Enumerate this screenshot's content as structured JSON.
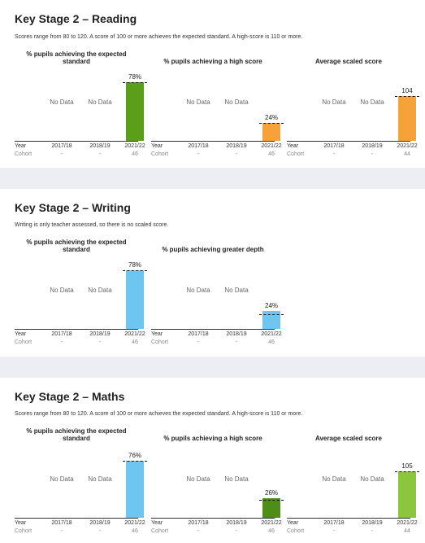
{
  "reading": {
    "title": "Key Stage 2 – Reading",
    "description": "Scores range from 80 to 120. A score of 100 or more achieves the expected standard. A high-score is 110 or more."
  },
  "writing": {
    "title": "Key Stage 2 – Writing",
    "description": "Writing is only teacher assessed, so there is no scaled score."
  },
  "maths": {
    "title": "Key Stage 2 – Maths",
    "description": "Scores range from 80 to 120. A score of 100 or more achieves the expected standard. A high-score is 110 or more."
  },
  "labels": {
    "year": "Year",
    "cohort": "Cohort",
    "no_data": "No Data"
  },
  "colors": {
    "green_dark": "#5a9e1a",
    "orange": "#f7a13a",
    "blue": "#6ec6f0",
    "green_dark2": "#4e8e18",
    "green_light": "#8cc63f"
  },
  "chart_data": [
    {
      "type": "bar",
      "section": "reading",
      "title": "% pupils achieving the expected standard",
      "categories": [
        "2017/18",
        "2018/19",
        "2021/22"
      ],
      "values": [
        null,
        null,
        78
      ],
      "value_labels": [
        "",
        "",
        "78%"
      ],
      "cohort": [
        "-",
        "-",
        "46"
      ],
      "ylim": [
        0,
        100
      ],
      "color": "#5a9e1a",
      "reference_line": 78
    },
    {
      "type": "bar",
      "section": "reading",
      "title": "% pupils achieving a high score",
      "categories": [
        "2017/18",
        "2018/19",
        "2021/22"
      ],
      "values": [
        null,
        null,
        24
      ],
      "value_labels": [
        "",
        "",
        "24%"
      ],
      "cohort": [
        "-",
        "-",
        "46"
      ],
      "ylim": [
        0,
        100
      ],
      "color": "#f7a13a",
      "reference_line": 24
    },
    {
      "type": "bar",
      "section": "reading",
      "title": "Average scaled score",
      "categories": [
        "2017/18",
        "2018/19",
        "2021/22"
      ],
      "values": [
        null,
        null,
        104
      ],
      "value_labels": [
        "",
        "",
        "104"
      ],
      "cohort": [
        "-",
        "-",
        "44"
      ],
      "ylim": [
        80,
        120
      ],
      "color": "#f7a13a",
      "reference_line": 104
    },
    {
      "type": "bar",
      "section": "writing",
      "title": "% pupils achieving the expected standard",
      "categories": [
        "2017/18",
        "2018/19",
        "2021/22"
      ],
      "values": [
        null,
        null,
        78
      ],
      "value_labels": [
        "",
        "",
        "78%"
      ],
      "cohort": [
        "-",
        "-",
        "46"
      ],
      "ylim": [
        0,
        100
      ],
      "color": "#6ec6f0",
      "reference_line": 78
    },
    {
      "type": "bar",
      "section": "writing",
      "title": "% pupils achieving greater depth",
      "categories": [
        "2017/18",
        "2018/19",
        "2021/22"
      ],
      "values": [
        null,
        null,
        24
      ],
      "value_labels": [
        "",
        "",
        "24%"
      ],
      "cohort": [
        "-",
        "-",
        "46"
      ],
      "ylim": [
        0,
        100
      ],
      "color": "#6ec6f0",
      "reference_line": 20
    },
    {
      "type": "bar",
      "section": "maths",
      "title": "% pupils achieving the expected standard",
      "categories": [
        "2017/18",
        "2018/19",
        "2021/22"
      ],
      "values": [
        null,
        null,
        76
      ],
      "value_labels": [
        "",
        "",
        "76%"
      ],
      "cohort": [
        "-",
        "-",
        "46"
      ],
      "ylim": [
        0,
        100
      ],
      "color": "#6ec6f0",
      "reference_line": 76
    },
    {
      "type": "bar",
      "section": "maths",
      "title": "% pupils achieving a high score",
      "categories": [
        "2017/18",
        "2018/19",
        "2021/22"
      ],
      "values": [
        null,
        null,
        26
      ],
      "value_labels": [
        "",
        "",
        "26%"
      ],
      "cohort": [
        "-",
        "-",
        "46"
      ],
      "ylim": [
        0,
        100
      ],
      "color": "#4e8e18",
      "reference_line": 24
    },
    {
      "type": "bar",
      "section": "maths",
      "title": "Average scaled score",
      "categories": [
        "2017/18",
        "2018/19",
        "2021/22"
      ],
      "values": [
        null,
        null,
        105
      ],
      "value_labels": [
        "",
        "",
        "105"
      ],
      "cohort": [
        "-",
        "-",
        "44"
      ],
      "ylim": [
        80,
        120
      ],
      "color": "#8cc63f",
      "reference_line": 105
    }
  ]
}
